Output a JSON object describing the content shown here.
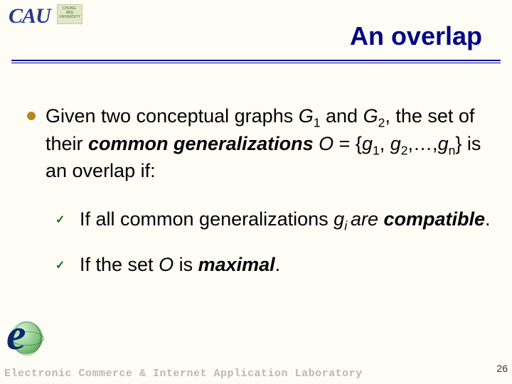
{
  "header": {
    "logo_text": "CAU",
    "logo_box_text": "CHUNG-ANG UNIVERSITY",
    "title": "An overlap"
  },
  "main": {
    "line_parts": {
      "t1": "Given two conceptual graphs ",
      "g1": "G",
      "sub1": "1",
      "t2": " and ",
      "g2": "G",
      "sub2": "2",
      "t3": ", the set of their ",
      "common": "common generalizations",
      "sp": " ",
      "oeq": "O",
      "eq": " = {",
      "gi1": "g",
      "gisub1": "1",
      "comma1": ", ",
      "gi2": "g",
      "gisub2": "2",
      "comma2": ",…,",
      "gin": "g",
      "gisubn": "n",
      "close": "} is an overlap if:"
    }
  },
  "sub": {
    "check": "✓",
    "item1": {
      "t1": "If all common generalizations ",
      "g": "g",
      "isub": "i ",
      "are": "are ",
      "comp": "compatible",
      "dot": "."
    },
    "item2": {
      "t1": "If the set ",
      "o": "O",
      "t2": " is ",
      "max": "maximal",
      "dot": "."
    }
  },
  "footer": {
    "text": "Electronic Commerce & Internet Application Laboratory",
    "page": "26"
  },
  "colors": {
    "title": "#000088",
    "bullet": "#b5851f",
    "check": "#1a6a1a",
    "background": "#fdfdf6",
    "footer_text": "#b9b9ad"
  }
}
